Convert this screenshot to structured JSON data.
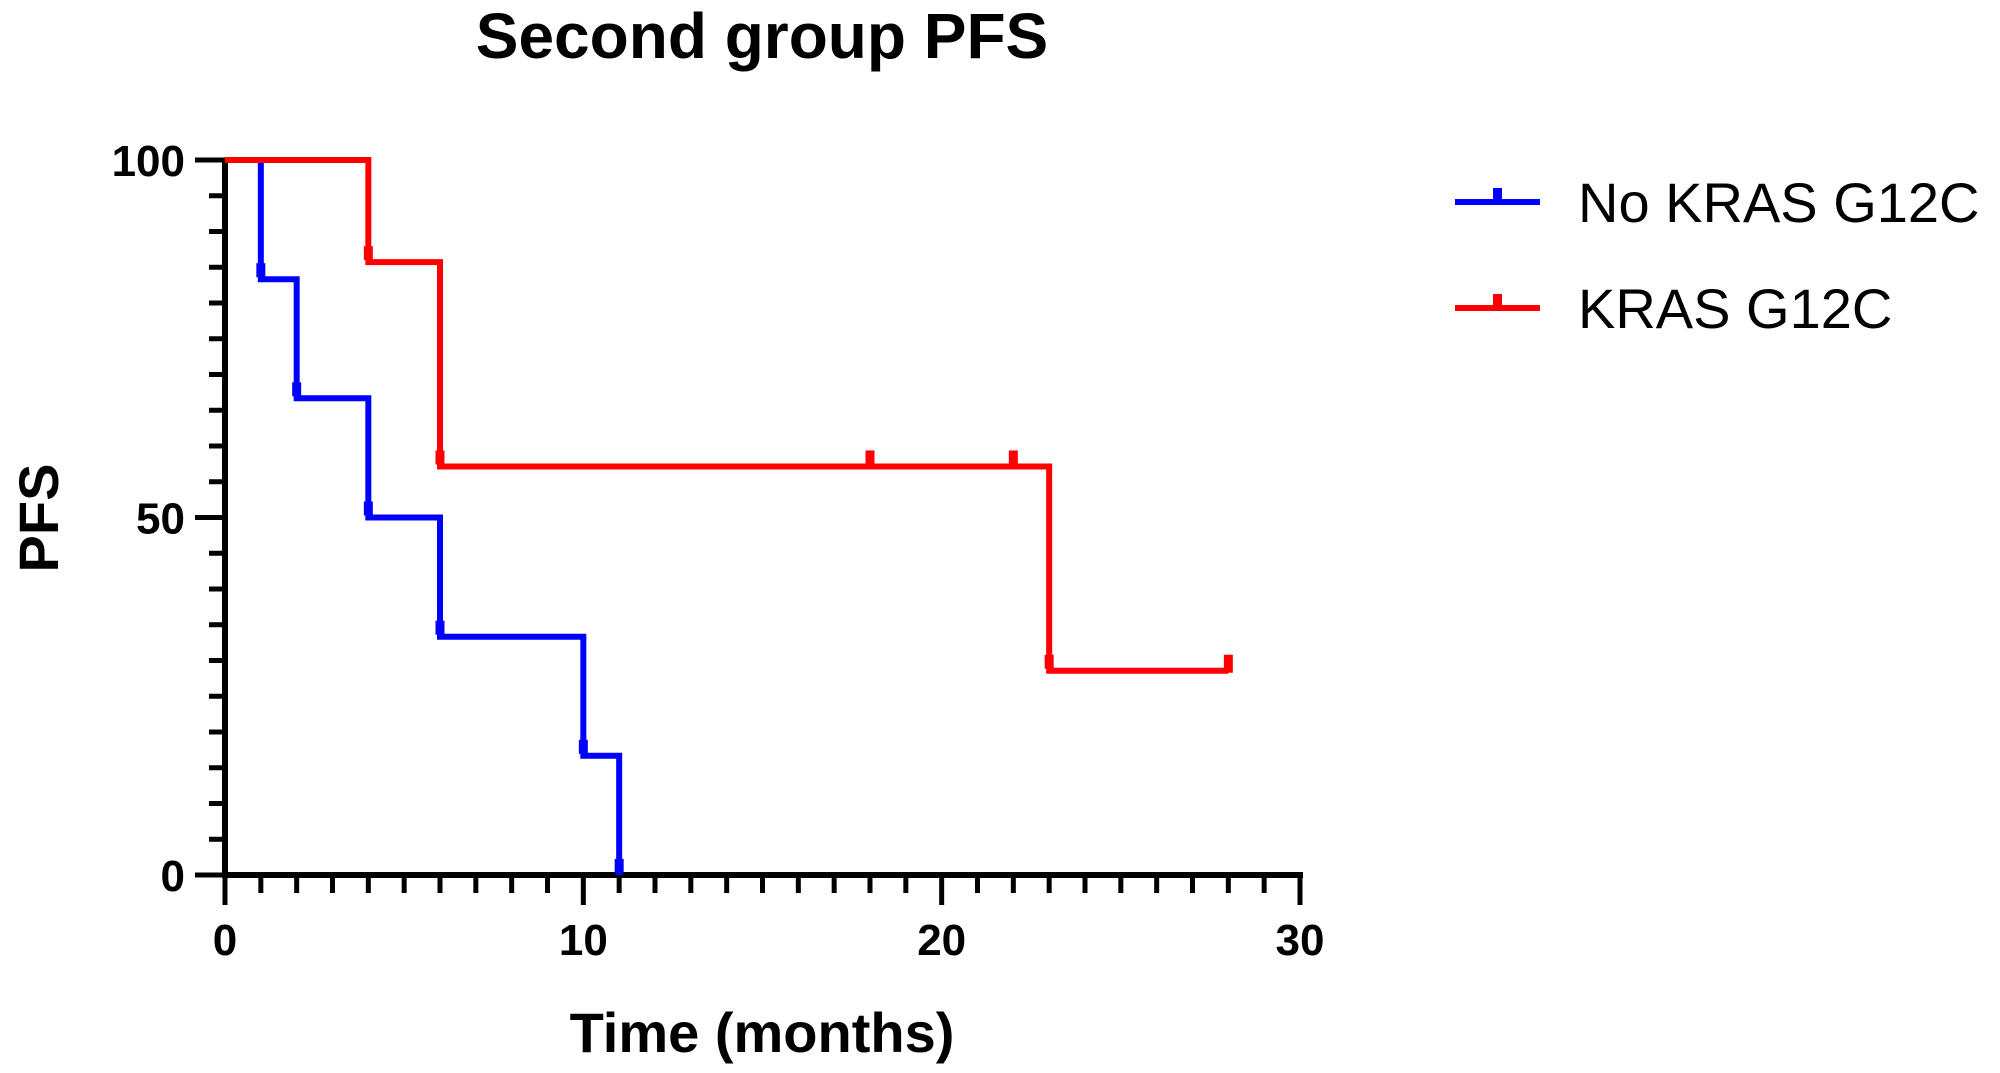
{
  "chart_data": {
    "type": "line",
    "title": "Second group PFS",
    "xlabel": "Time (months)",
    "ylabel": "PFS",
    "xlim": [
      0,
      30
    ],
    "ylim": [
      0,
      100
    ],
    "x_ticks": [
      0,
      10,
      20,
      30
    ],
    "y_ticks": [
      0,
      50,
      100
    ],
    "x_minor_step": 1,
    "y_minor_step": 5,
    "legend_position": "right",
    "step_curve": true,
    "series": [
      {
        "name": "No KRAS G12C",
        "color": "#0000ff",
        "steps": [
          [
            0,
            100
          ],
          [
            1,
            83.33
          ],
          [
            2,
            66.67
          ],
          [
            4,
            50
          ],
          [
            6,
            33.33
          ],
          [
            10,
            16.67
          ],
          [
            11,
            0
          ]
        ],
        "end_x": 11,
        "censor_x": []
      },
      {
        "name": "KRAS G12C",
        "color": "#ff0000",
        "steps": [
          [
            0,
            100
          ],
          [
            4,
            85.71
          ],
          [
            6,
            57.14
          ],
          [
            23,
            28.57
          ]
        ],
        "end_x": 28,
        "censor_x": [
          18,
          22,
          28
        ]
      }
    ]
  }
}
